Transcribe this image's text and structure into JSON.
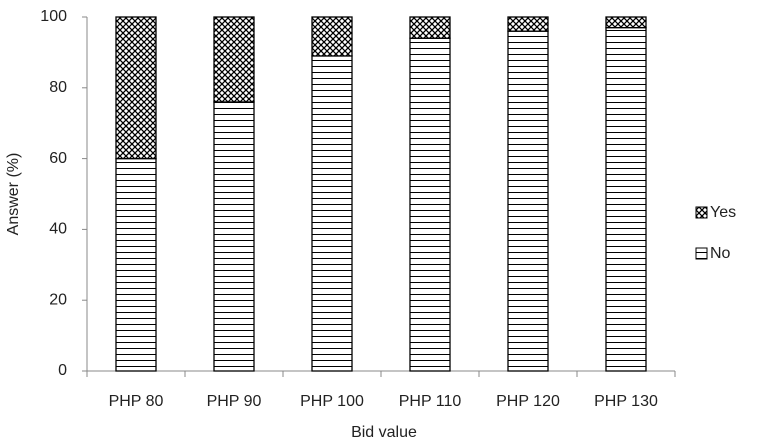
{
  "chart_data": {
    "type": "stacked_bar",
    "x_label": "Bid value",
    "y_label": "Answer (%)",
    "categories": [
      "PHP 80",
      "PHP 90",
      "PHP 100",
      "PHP 110",
      "PHP 120",
      "PHP 130"
    ],
    "series": [
      {
        "name": "No",
        "color": "#000000",
        "pattern": "horizontal-lines",
        "values": [
          60,
          76,
          89,
          94,
          96,
          97
        ]
      },
      {
        "name": "Yes",
        "color": "#000000",
        "pattern": "checker",
        "values": [
          40,
          24,
          11,
          6,
          4,
          3
        ]
      }
    ],
    "ylim": [
      0,
      100
    ],
    "yticks": [
      0,
      20,
      40,
      60,
      80,
      100
    ],
    "grid": false,
    "legend": "right"
  }
}
